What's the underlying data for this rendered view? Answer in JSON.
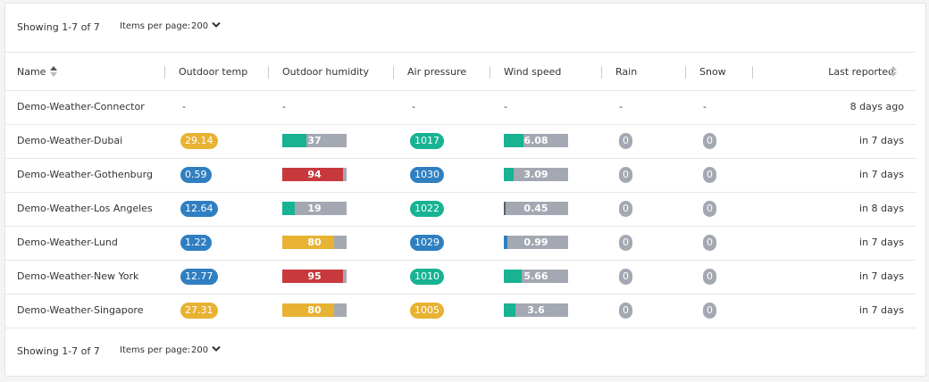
{
  "pagination_top": {
    "showing": "Showing 1-7 of 7",
    "per_page_label": "Items per page:",
    "per_page": "200"
  },
  "table": {
    "headers": [
      "Name",
      "Outdoor temp",
      "Outdoor humidity",
      "Air pressure",
      "Wind speed",
      "Rain",
      "Snow",
      "Last reported"
    ],
    "rows": [
      {
        "name": "Demo-Weather-Connector",
        "temp": "-",
        "humidity": "-",
        "pressure": "-",
        "wind": "-",
        "rain": "-",
        "snow": "-",
        "last_reported": "8 days ago"
      },
      {
        "name": "Demo-Weather-Dubai",
        "temp": {
          "value": 29.14,
          "color": "#e8b232"
        },
        "humidity": {
          "value": 37,
          "color": "#17b392"
        },
        "pressure": {
          "value": 1017,
          "color": "#17b392"
        },
        "wind": {
          "value": 6.08,
          "color": "#17b392"
        },
        "rain": 0,
        "snow": 0,
        "last_reported": "in 7 days"
      },
      {
        "name": "Demo-Weather-Gothenburg",
        "temp": {
          "value": 0.59,
          "color": "#2f7fc1"
        },
        "humidity": {
          "value": 94,
          "color": "#c8393e"
        },
        "pressure": {
          "value": 1030,
          "color": "#2f7fc1"
        },
        "wind": {
          "value": 3.09,
          "color": "#17b392"
        },
        "rain": 0,
        "snow": 0,
        "last_reported": "in 7 days"
      },
      {
        "name": "Demo-Weather-Los Angeles",
        "temp": {
          "value": 12.64,
          "color": "#2f7fc1"
        },
        "humidity": {
          "value": 19,
          "color": "#17b392"
        },
        "pressure": {
          "value": 1022,
          "color": "#17b392"
        },
        "wind": {
          "value": 0.45,
          "color": "#55606e"
        },
        "rain": 0,
        "snow": 0,
        "last_reported": "in 8 days"
      },
      {
        "name": "Demo-Weather-Lund",
        "temp": {
          "value": 1.22,
          "color": "#2f7fc1"
        },
        "humidity": {
          "value": 80,
          "color": "#e8b232"
        },
        "pressure": {
          "value": 1029,
          "color": "#2f7fc1"
        },
        "wind": {
          "value": 0.99,
          "color": "#2f7fc1"
        },
        "rain": 0,
        "snow": 0,
        "last_reported": "in 7 days"
      },
      {
        "name": "Demo-Weather-New York",
        "temp": {
          "value": 12.77,
          "color": "#2f7fc1"
        },
        "humidity": {
          "value": 95,
          "color": "#c8393e"
        },
        "pressure": {
          "value": 1010,
          "color": "#17b392"
        },
        "wind": {
          "value": 5.66,
          "color": "#17b392"
        },
        "rain": 0,
        "snow": 0,
        "last_reported": "in 7 days"
      },
      {
        "name": "Demo-Weather-Singapore",
        "temp": {
          "value": 27.31,
          "color": "#e8b232"
        },
        "humidity": {
          "value": 80,
          "color": "#e8b232"
        },
        "pressure": {
          "value": 1005,
          "color": "#e8b232"
        },
        "wind": {
          "value": 3.6,
          "color": "#17b392"
        },
        "rain": 0,
        "snow": 0,
        "last_reported": "in 7 days"
      }
    ]
  },
  "pagination_bottom": {
    "showing": "Showing 1-7 of 7",
    "per_page_label": "Items per page:",
    "per_page": "200"
  }
}
